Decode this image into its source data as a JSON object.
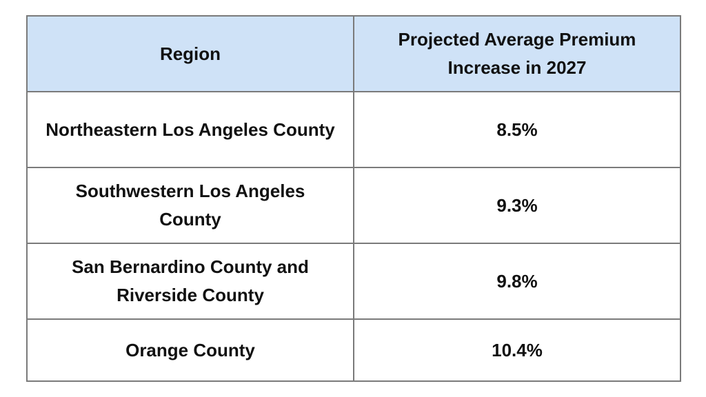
{
  "table": {
    "headers": {
      "region": "Region",
      "increase": "Projected Average Premium Increase in 2027"
    },
    "rows": [
      {
        "region": "Northeastern Los Angeles County",
        "increase": "8.5%"
      },
      {
        "region": "Southwestern Los Angeles County",
        "increase": "9.3%"
      },
      {
        "region": "San Bernardino County and Riverside County",
        "increase": "9.8%"
      },
      {
        "region": "Orange County",
        "increase": "10.4%"
      }
    ]
  },
  "colors": {
    "header_background": "#cfe2f7",
    "border": "#7a7a7a",
    "text": "#111111"
  }
}
